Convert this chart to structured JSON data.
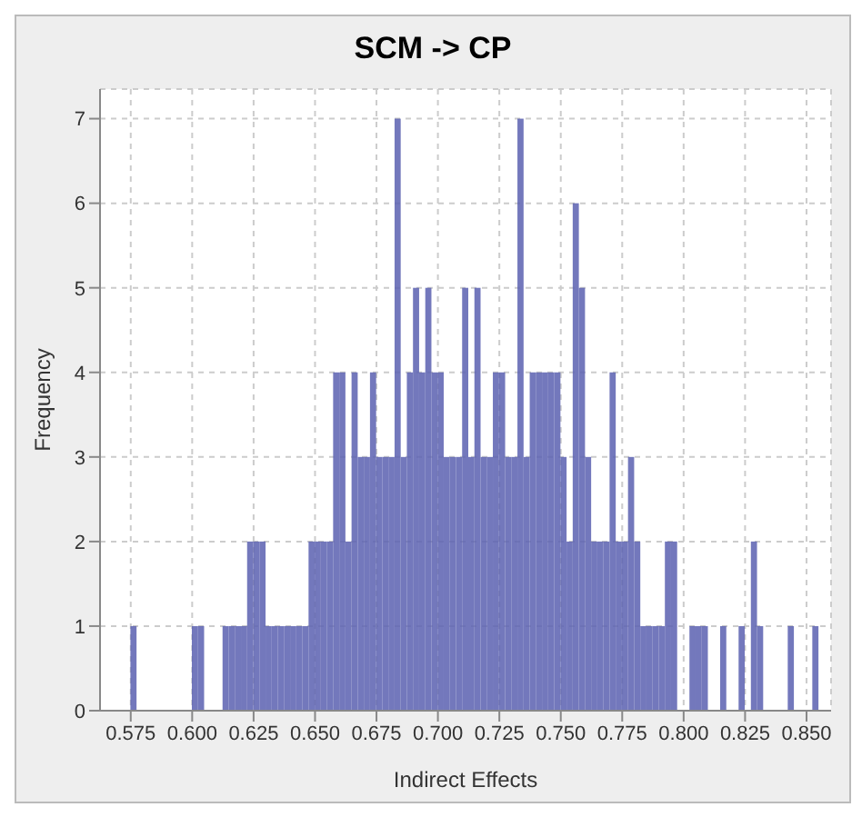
{
  "chart_data": {
    "type": "histogram",
    "title": "SCM -> CP",
    "xlabel": "Indirect Effects",
    "ylabel": "Frequency",
    "bins": [
      0.5625,
      0.565,
      0.5675,
      0.57,
      0.5725,
      0.575,
      0.5775,
      0.58,
      0.5825,
      0.585,
      0.5875,
      0.59,
      0.5925,
      0.595,
      0.5975,
      0.6,
      0.6025,
      0.605,
      0.6075,
      0.61,
      0.6125,
      0.615,
      0.6175,
      0.62,
      0.6225,
      0.625,
      0.6275,
      0.63,
      0.6325,
      0.635,
      0.6375,
      0.64,
      0.6425,
      0.645,
      0.6475,
      0.65,
      0.6525,
      0.655,
      0.6575,
      0.66,
      0.6625,
      0.665,
      0.6675,
      0.67,
      0.6725,
      0.675,
      0.6775,
      0.68,
      0.6825,
      0.685,
      0.6875,
      0.69,
      0.6925,
      0.695,
      0.6975,
      0.7,
      0.7025,
      0.705,
      0.7075,
      0.71,
      0.7125,
      0.715,
      0.7175,
      0.72,
      0.7225,
      0.725,
      0.7275,
      0.73,
      0.7325,
      0.735,
      0.7375,
      0.74,
      0.7425,
      0.745,
      0.7475,
      0.75,
      0.7525,
      0.755,
      0.7575,
      0.76,
      0.7625,
      0.765,
      0.7675,
      0.77,
      0.7725,
      0.775,
      0.7775,
      0.78,
      0.7825,
      0.785,
      0.7875,
      0.79,
      0.7925,
      0.795,
      0.7975,
      0.8,
      0.8025,
      0.805,
      0.8075,
      0.81,
      0.8125,
      0.815,
      0.8175,
      0.82,
      0.8225,
      0.825,
      0.8275,
      0.83,
      0.8325,
      0.835,
      0.8375,
      0.84,
      0.8425,
      0.845,
      0.8475,
      0.85,
      0.8525,
      0.855,
      0.8575,
      0.86
    ],
    "values": [
      0,
      0,
      0,
      0,
      0,
      1,
      0,
      0,
      0,
      0,
      0,
      0,
      0,
      0,
      0,
      1,
      1,
      0,
      0,
      0,
      1,
      1,
      1,
      1,
      2,
      2,
      2,
      1,
      1,
      1,
      1,
      1,
      1,
      1,
      2,
      2,
      2,
      2,
      4,
      4,
      2,
      4,
      3,
      3,
      4,
      3,
      3,
      3,
      7,
      3,
      4,
      5,
      4,
      5,
      4,
      4,
      3,
      3,
      3,
      5,
      3,
      5,
      3,
      3,
      4,
      4,
      3,
      3,
      7,
      3,
      4,
      4,
      4,
      4,
      4,
      3,
      2,
      6,
      5,
      3,
      2,
      2,
      2,
      4,
      2,
      2,
      3,
      2,
      1,
      1,
      1,
      1,
      2,
      2,
      0,
      0,
      1,
      1,
      1,
      0,
      0,
      1,
      0,
      0,
      1,
      0,
      2,
      1,
      0,
      0,
      0,
      0,
      1,
      0,
      0,
      0,
      1,
      0,
      0
    ],
    "color": "#5b60b0",
    "xlim": [
      0.5625,
      0.86
    ],
    "xticks": [
      {
        "value": 0.575,
        "label": "0.575"
      },
      {
        "value": 0.6,
        "label": "0.600"
      },
      {
        "value": 0.625,
        "label": "0.625"
      },
      {
        "value": 0.65,
        "label": "0.650"
      },
      {
        "value": 0.675,
        "label": "0.675"
      },
      {
        "value": 0.7,
        "label": "0.700"
      },
      {
        "value": 0.725,
        "label": "0.725"
      },
      {
        "value": 0.75,
        "label": "0.750"
      },
      {
        "value": 0.775,
        "label": "0.775"
      },
      {
        "value": 0.8,
        "label": "0.800"
      },
      {
        "value": 0.825,
        "label": "0.825"
      },
      {
        "value": 0.85,
        "label": "0.850"
      }
    ],
    "ylim": [
      0,
      7.35
    ],
    "yticks": [
      0,
      1,
      2,
      3,
      4,
      5,
      6,
      7
    ],
    "grid": true
  }
}
